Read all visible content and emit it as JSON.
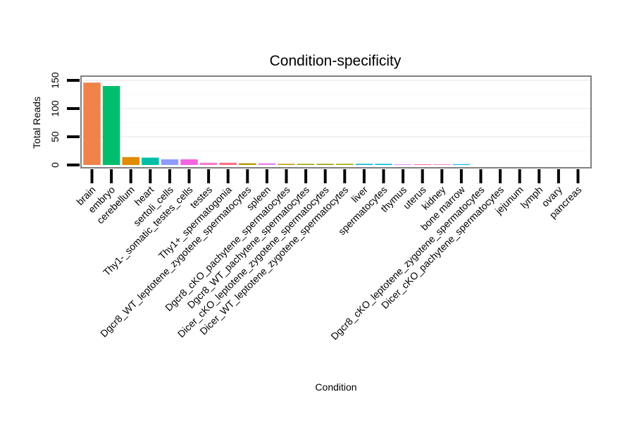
{
  "chart_data": {
    "type": "bar",
    "title": "Condition-specificity",
    "xlabel": "Condition",
    "ylabel": "Total Reads",
    "ylim": [
      0,
      155
    ],
    "yticks": [
      0,
      50,
      100,
      150
    ],
    "grid": true,
    "legend": "none",
    "categories": [
      "brain",
      "embryo",
      "cerebellum",
      "heart",
      "sertoli_cells",
      "Thy1-_somatic_testes_cells",
      "testes",
      "Thy1+_spermatogonia",
      "Dgcr8_WT_leptotene_zygotene_spermatocytes",
      "spleen",
      "Dgcr8_cKO_pachytene_spermatocytes",
      "Dgcr8_WT_pachytene_spermatocytes",
      "Dicer_cKO_leptotene_zygotene_spermatocytes",
      "Dicer_WT_leptotene_zygotene_spermatocytes",
      "liver",
      "spermatocytes",
      "thymus",
      "uterus",
      "kidney",
      "bone marrow",
      "Dgcr8_cKO_leptotene_zygotene_spermatocytes",
      "Dicer_cKO_pachytene_spermatocytes",
      "jejunum",
      "lymph",
      "ovary",
      "pancreas"
    ],
    "values": [
      146,
      140,
      14,
      13,
      10,
      10,
      4,
      4,
      3,
      3,
      2,
      2,
      2,
      2,
      2,
      2,
      1,
      1,
      1,
      1,
      0,
      0,
      0,
      0,
      0,
      0
    ],
    "colors": [
      "#F0824A",
      "#00BE6E",
      "#E08B00",
      "#00BFA6",
      "#8F9CFF",
      "#F564E3",
      "#FA7BD0",
      "#FC6F86",
      "#B49A00",
      "#E87EF5",
      "#C39B00",
      "#9FA300",
      "#9E9B00",
      "#A3A500",
      "#00B5E3",
      "#00BCD8",
      "#E18BFD",
      "#FF67A4",
      "#F97FCC",
      "#00B0F6",
      "#00C0B8",
      "#00BA38",
      "#D39200",
      "#93AA00",
      "#619CFF",
      "#FF61C3"
    ]
  }
}
